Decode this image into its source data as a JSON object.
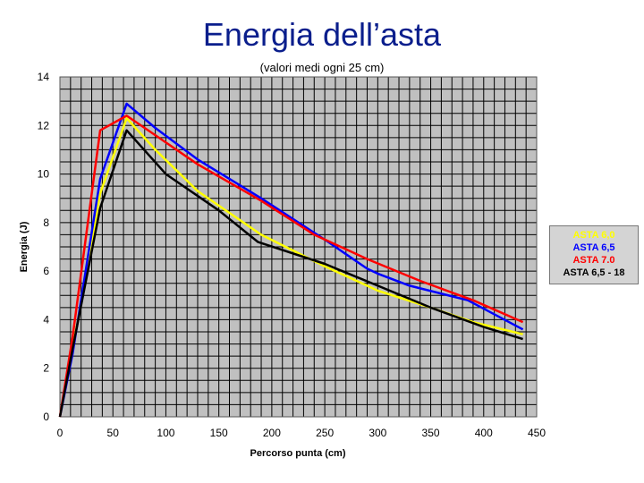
{
  "chart_data": {
    "type": "line",
    "title": "Energia dell’asta",
    "subtitle": "(valori medi ogni 25 cm)",
    "xlabel": "Percorso punta (cm)",
    "ylabel": "Energia (J)",
    "xlim": [
      0,
      450
    ],
    "ylim": [
      0,
      14
    ],
    "xticks": [
      0,
      50,
      100,
      150,
      200,
      250,
      300,
      350,
      400,
      450
    ],
    "yticks": [
      0,
      2,
      4,
      6,
      8,
      10,
      12,
      14
    ],
    "grid": true,
    "legend_position": "right",
    "series": [
      {
        "name": "ASTA 6,0",
        "color": "#ffff00",
        "x": [
          0,
          12,
          38,
          63,
          90,
          130,
          190,
          250,
          300,
          350,
          390,
          437
        ],
        "y": [
          0,
          2.8,
          9.2,
          12.3,
          11.0,
          9.3,
          7.5,
          6.2,
          5.2,
          4.5,
          3.9,
          3.4
        ]
      },
      {
        "name": "ASTA 6,5",
        "color": "#0000ff",
        "x": [
          0,
          12,
          38,
          63,
          90,
          130,
          190,
          250,
          290,
          300,
          330,
          385,
          437
        ],
        "y": [
          0,
          2.6,
          9.8,
          12.9,
          11.9,
          10.6,
          9.0,
          7.3,
          6.1,
          5.9,
          5.4,
          4.8,
          3.6
        ]
      },
      {
        "name": "ASTA 7.0",
        "color": "#ff0000",
        "x": [
          0,
          12,
          38,
          63,
          90,
          130,
          190,
          240,
          290,
          340,
          390,
          437
        ],
        "y": [
          0,
          3.3,
          11.8,
          12.4,
          11.6,
          10.4,
          8.9,
          7.5,
          6.5,
          5.6,
          4.8,
          3.9
        ]
      },
      {
        "name": "ASTA 6,5 - 18",
        "color": "#000000",
        "x": [
          0,
          12,
          38,
          63,
          100,
          150,
          187,
          250,
          300,
          350,
          400,
          437
        ],
        "y": [
          0,
          2.8,
          8.6,
          11.8,
          10.0,
          8.5,
          7.2,
          6.3,
          5.4,
          4.5,
          3.7,
          3.2
        ]
      }
    ]
  }
}
